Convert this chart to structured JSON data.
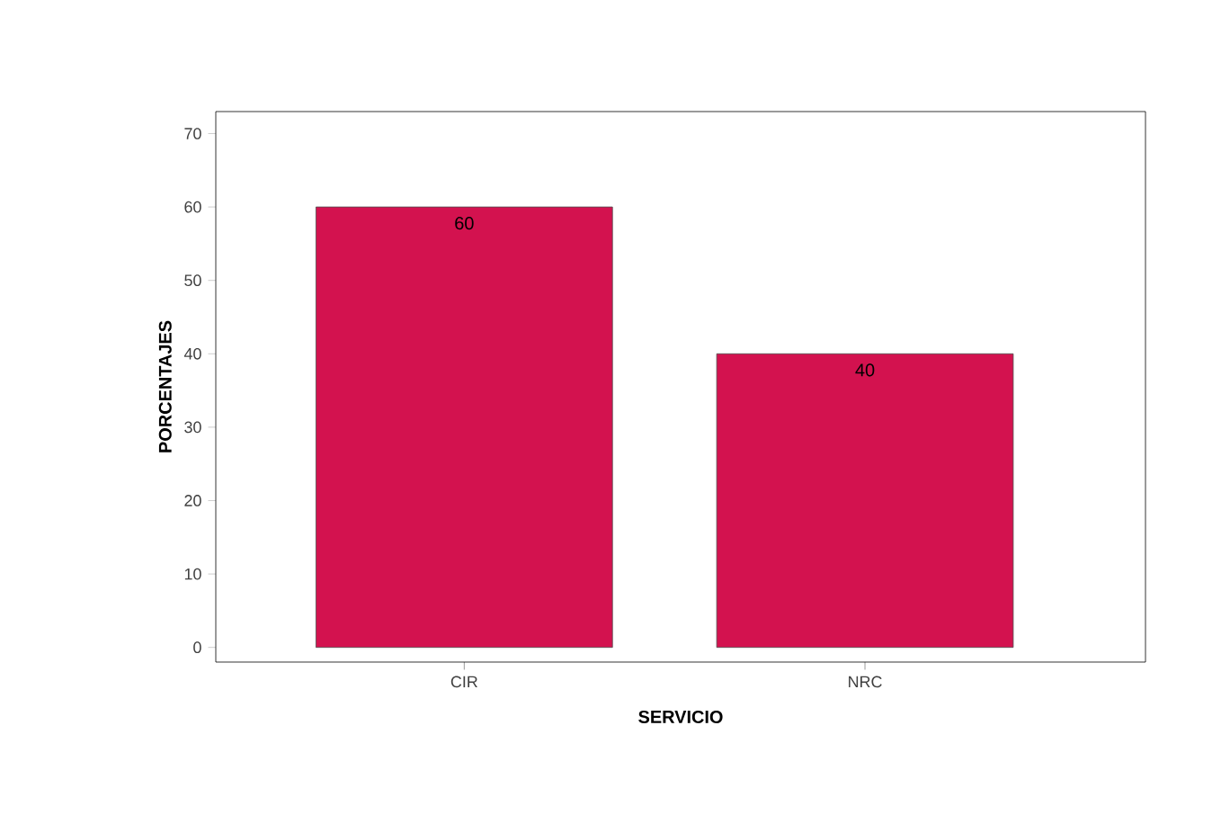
{
  "chart_data": {
    "type": "bar",
    "xlabel": "SERVICIO",
    "ylabel": "PORCENTAJES",
    "categories": [
      "CIR",
      "NRC"
    ],
    "values": [
      60,
      40
    ],
    "color": "#d3124f",
    "data_labels": true,
    "ylim": [
      -2,
      73
    ],
    "yticks": [
      0,
      10,
      20,
      30,
      40,
      50,
      60,
      70
    ]
  }
}
